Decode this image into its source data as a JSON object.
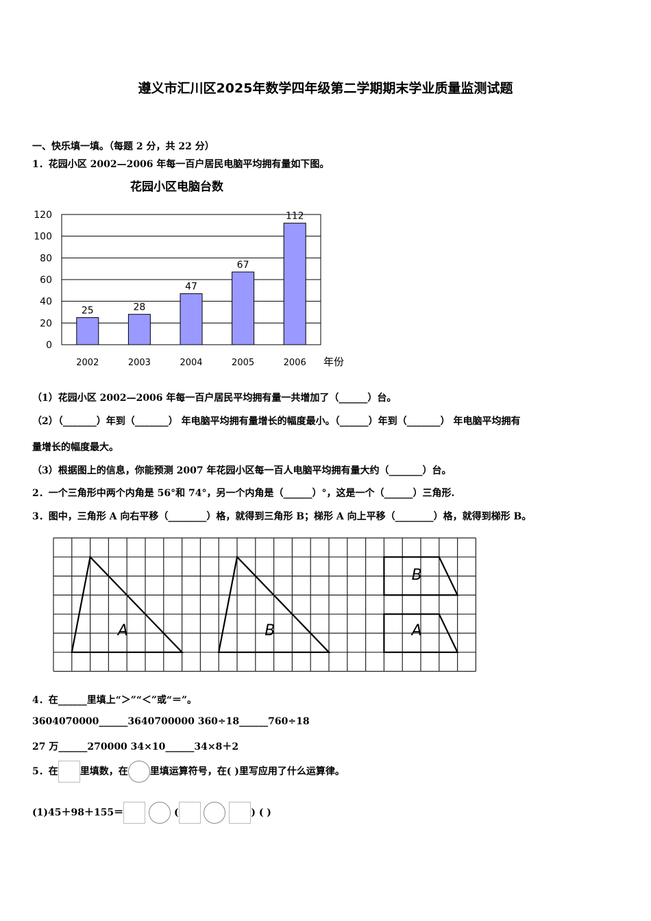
{
  "title": "遵义市汇川区2025年数学四年级第二学期期末学业质量监测试题",
  "section1": "一、快乐填一填。（每题 2 分，共 22 分）",
  "q1": "1．花园小区 2002—2006 年每一百户居民电脑平均拥有量如下图。",
  "chart_data": {
    "type": "bar",
    "title": "花园小区电脑台数",
    "categories": [
      "2002",
      "2003",
      "2004",
      "2005",
      "2006"
    ],
    "values": [
      25,
      28,
      47,
      67,
      112
    ],
    "xlabel": "年份",
    "ylabel": "",
    "ylim": [
      0,
      120
    ],
    "yticks": [
      "0",
      "20",
      "40",
      "60",
      "80",
      "100",
      "120"
    ],
    "grid": true,
    "bar_color": "#9999ff"
  },
  "q1_1": "（1）花园小区 2002—2006 年每一百户居民平均拥有量一共增加了（______）台。",
  "q1_2a": "（2）（_______）年到（_______） 年电脑平均拥有量增长的幅度最小。（______）年到（_______） 年电脑平均拥有",
  "q1_2b": "量增长的幅度最大。",
  "q1_3": "（3）根据图上的信息，你能预测 2007 年花园小区每一百人电脑平均拥有量大约（_______）台。",
  "q2": "2．一个三角形中两个内角是 56°和 74°，另一个内角是（______）°，这是一个（______）三角形.",
  "q3": "3．图中，三角形 A 向右平移（________）格，就得到三角形 B；梯形 A 向上平移（________）格，就得到梯形 B。",
  "grid_figure": {
    "labels": [
      "A",
      "B",
      "B",
      "A"
    ]
  },
  "q4": "4．在______里填上“＞”“＜”或“＝”。",
  "q4_line1": "3604070000______3640700000    360÷18______760÷18",
  "q4_line2": "27 万______270000    34×10______34×8＋2",
  "q5": {
    "p1": "5．在",
    "p2": "里填数，在",
    "p3": "里填运算符号，在( )里写应用了什么运算律。"
  },
  "q5_1": {
    "expr": "(1)45＋98＋155＝",
    "open": "(",
    "close": ")",
    "blank": "(        )"
  }
}
